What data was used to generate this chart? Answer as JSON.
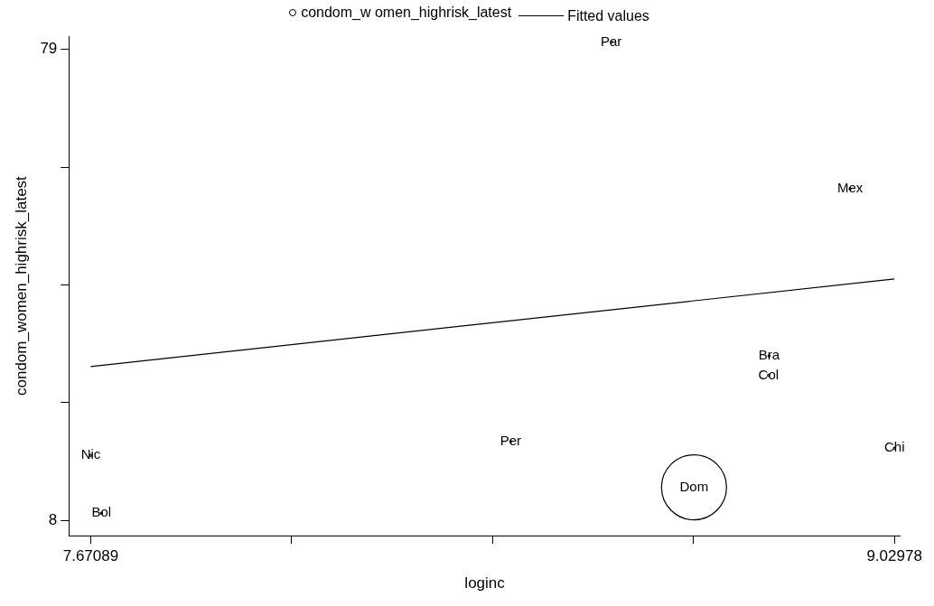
{
  "chart_data": {
    "type": "bubble",
    "xlabel": "loginc",
    "ylabel": "condom_women_highrisk_latest",
    "legend": "top",
    "marker": "circle",
    "grid": false,
    "xlim": [
      7.634,
      9.04
    ],
    "ylim": [
      5.7,
      81
    ],
    "xticks": [
      7.67089,
      {
        "value": 8.01061,
        "label": null
      },
      {
        "value": 8.35033,
        "label": null
      },
      {
        "value": 8.69006,
        "label": null
      },
      9.02978
    ],
    "yticks": [
      8,
      {
        "value": 25.75,
        "label": null
      },
      {
        "value": 43.5,
        "label": null
      },
      {
        "value": 61.25,
        "label": null
      },
      79
    ],
    "series": [
      {
        "name": "condom_w omen_highrisk_latest",
        "color": "#000000",
        "x": [
          8.551,
          8.955,
          8.818,
          8.817,
          8.381,
          7.671,
          9.03,
          8.691,
          7.689
        ],
        "values": [
          80.1,
          58.0,
          32.8,
          29.9,
          19.9,
          17.8,
          18.9,
          13.0,
          9.1
        ],
        "sizes": [
          0.001,
          0.001,
          0.001,
          0.001,
          0.001,
          0.001,
          0.001,
          1,
          0.001
        ]
      },
      {
        "name": "Fitted values",
        "type": "line",
        "marker": "none",
        "color": "#000000",
        "x": [
          7.67089,
          9.02978
        ],
        "values": [
          31.2,
          44.4
        ]
      }
    ],
    "annotations": [
      {
        "text": "Par",
        "x": 8.551,
        "y": 80.1
      },
      {
        "text": "Mex",
        "x": 8.955,
        "y": 58.0
      },
      {
        "text": "Bra",
        "x": 8.818,
        "y": 32.8
      },
      {
        "text": "Col",
        "x": 8.817,
        "y": 29.9
      },
      {
        "text": "Per",
        "x": 8.381,
        "y": 19.9
      },
      {
        "text": "Nic",
        "x": 7.671,
        "y": 17.8
      },
      {
        "text": "Chi",
        "x": 9.03,
        "y": 18.9
      },
      {
        "text": "Dom",
        "x": 8.691,
        "y": 13.0
      },
      {
        "text": "Bol",
        "x": 7.689,
        "y": 9.1
      }
    ]
  }
}
